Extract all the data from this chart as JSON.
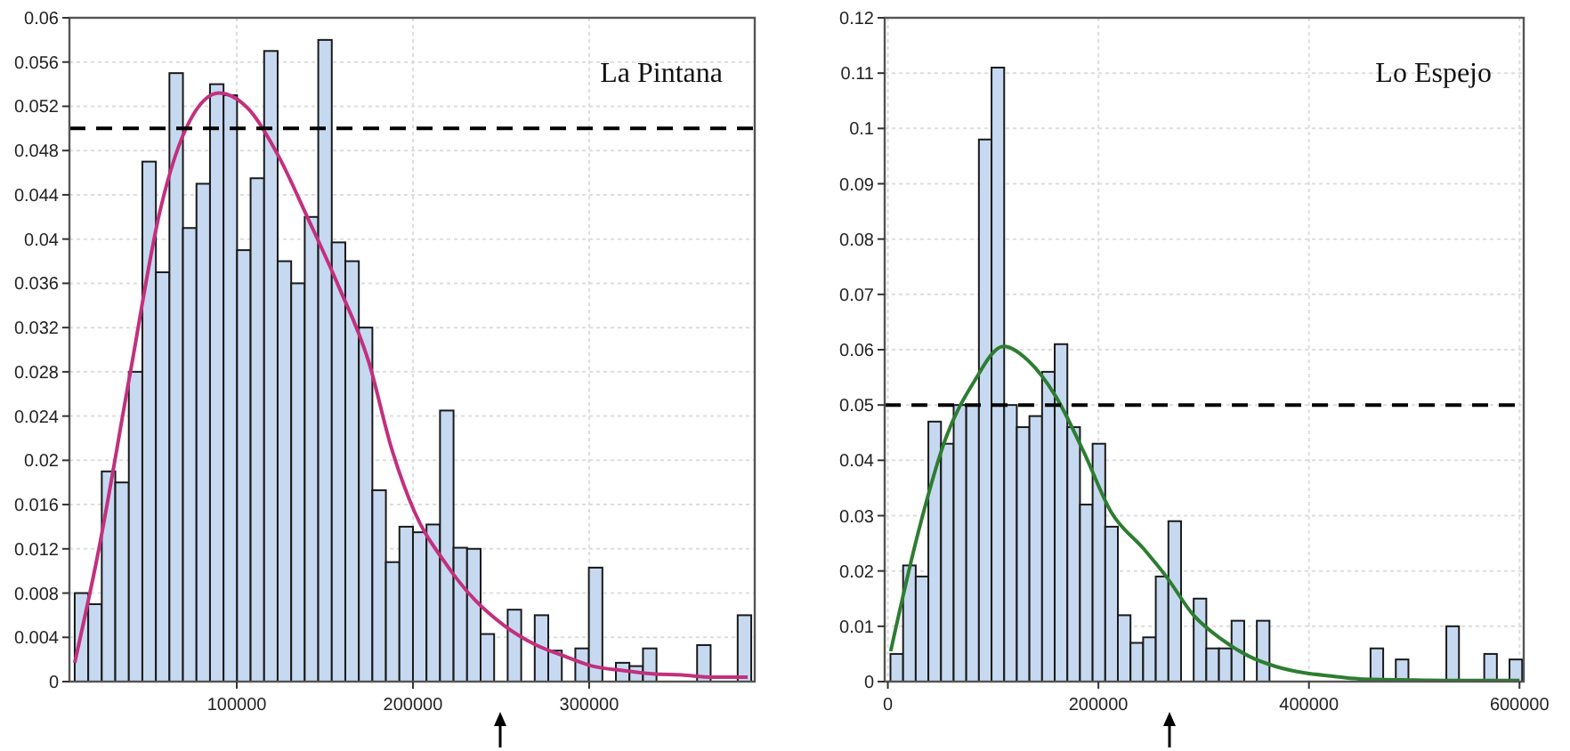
{
  "chart_data": [
    {
      "type": "histogram",
      "xlim": [
        5000,
        394000
      ],
      "ylim": [
        0,
        0.06
      ],
      "xticks": [
        100000,
        200000,
        300000
      ],
      "yticks": [
        0,
        0.004,
        0.008,
        0.012,
        0.016,
        0.02,
        0.024,
        0.028,
        0.032,
        0.036,
        0.04,
        0.044,
        0.048,
        0.052,
        0.056,
        0.06
      ],
      "grid": true,
      "annotations": [
        "La Pintana"
      ],
      "ref_lines": [
        {
          "axis": "y",
          "value": 0.05,
          "color": "#000000",
          "line_style": "dashed"
        }
      ],
      "series": [
        {
          "type": "histogram",
          "color": "#c6d9f0",
          "bins": [
            8000,
            15680,
            23360,
            31040,
            38720,
            46400,
            54080,
            61760,
            69440,
            77120,
            84800,
            92480,
            100160,
            107840,
            115520,
            123200,
            130880,
            138560,
            146240,
            153920,
            161600,
            169280,
            176960,
            184640,
            192320,
            200000,
            207680,
            215360,
            223040,
            230720,
            238400,
            246080,
            253760,
            261440,
            269120,
            276800,
            284480,
            292160,
            299840,
            307520,
            315200,
            322880,
            330560,
            338240,
            345920,
            353600,
            361280,
            368960,
            376640,
            384320,
            392000
          ],
          "values": [
            0.008,
            0.007,
            0.019,
            0.018,
            0.028,
            0.047,
            0.037,
            0.055,
            0.041,
            0.045,
            0.054,
            0.053,
            0.039,
            0.0455,
            0.057,
            0.038,
            0.036,
            0.042,
            0.058,
            0.0397,
            0.038,
            0.032,
            0.0173,
            0.0108,
            0.014,
            0.0135,
            0.0142,
            0.0245,
            0.0121,
            0.012,
            0.0043,
            0,
            0.0065,
            0,
            0.006,
            0.0028,
            0,
            0.003,
            0.0103,
            0,
            0.0017,
            0.0014,
            0.003,
            0,
            0,
            0,
            0.0033,
            0,
            0,
            0.006
          ]
        },
        {
          "type": "line",
          "color": "#c2307e",
          "x": [
            8000,
            21000,
            39400,
            56500,
            73700,
            90000,
            107000,
            124000,
            140000,
            157600,
            174700,
            188000,
            201000,
            218000,
            235000,
            251500,
            268700,
            286000,
            302000,
            319000,
            336000,
            352500,
            369700,
            390000
          ],
          "values": [
            0.0017,
            0.0114,
            0.0278,
            0.0426,
            0.0508,
            0.0532,
            0.0517,
            0.0474,
            0.042,
            0.0358,
            0.029,
            0.021,
            0.0153,
            0.0108,
            0.0074,
            0.0051,
            0.0034,
            0.0023,
            0.0014,
            0.001,
            0.0007,
            0.0006,
            0.0004,
            0.0004
          ]
        }
      ]
    },
    {
      "type": "histogram",
      "xlim": [
        -3000,
        604000
      ],
      "ylim": [
        0,
        0.12
      ],
      "xticks": [
        0,
        200000,
        400000,
        600000
      ],
      "yticks": [
        0,
        0.01,
        0.02,
        0.03,
        0.04,
        0.05,
        0.06,
        0.07,
        0.08,
        0.09,
        0.1,
        0.11,
        0.12
      ],
      "grid": true,
      "annotations": [
        "Lo Espejo"
      ],
      "ref_lines": [
        {
          "axis": "y",
          "value": 0.05,
          "color": "#000000",
          "line_style": "dashed"
        }
      ],
      "series": [
        {
          "type": "histogram",
          "color": "#c6d9f0",
          "bins": [
            2500,
            14500,
            26500,
            38500,
            50500,
            62500,
            74500,
            86500,
            98500,
            110500,
            122500,
            134500,
            146500,
            158500,
            170500,
            182500,
            194500,
            206500,
            218500,
            230500,
            242500,
            254500,
            266500,
            278500,
            290500,
            302500,
            314500,
            326500,
            338500,
            350500,
            362500,
            374500,
            386500,
            398500,
            410500,
            422500,
            434500,
            446500,
            458500,
            470500,
            482500,
            494500,
            506500,
            518500,
            530500,
            542500,
            554500,
            566500,
            578500,
            590500,
            602500
          ],
          "values": [
            0.005,
            0.021,
            0.019,
            0.047,
            0.043,
            0.05,
            0.05,
            0.098,
            0.111,
            0.05,
            0.046,
            0.048,
            0.056,
            0.061,
            0.046,
            0.032,
            0.043,
            0.028,
            0.012,
            0.007,
            0.008,
            0.019,
            0.029,
            0,
            0.015,
            0.006,
            0.006,
            0.011,
            0,
            0.011,
            0,
            0,
            0,
            0,
            0,
            0,
            0,
            0,
            0.006,
            0,
            0.004,
            0,
            0,
            0,
            0.01,
            0,
            0,
            0.005,
            0,
            0.004
          ]
        },
        {
          "type": "line",
          "color": "#2e7d32",
          "x": [
            2700,
            28900,
            55000,
            81200,
            110000,
            133500,
            159700,
            185900,
            212000,
            243000,
            264400,
            290400,
            316600,
            342800,
            369000,
            395100,
            421300,
            447500,
            500000,
            552000,
            600000
          ],
          "values": [
            0.0055,
            0.027,
            0.044,
            0.054,
            0.0606,
            0.058,
            0.0515,
            0.0416,
            0.0307,
            0.024,
            0.019,
            0.012,
            0.0077,
            0.0046,
            0.0027,
            0.0016,
            0.001,
            0.0005,
            0.0003,
            0.0002,
            0.0002
          ]
        }
      ]
    }
  ]
}
